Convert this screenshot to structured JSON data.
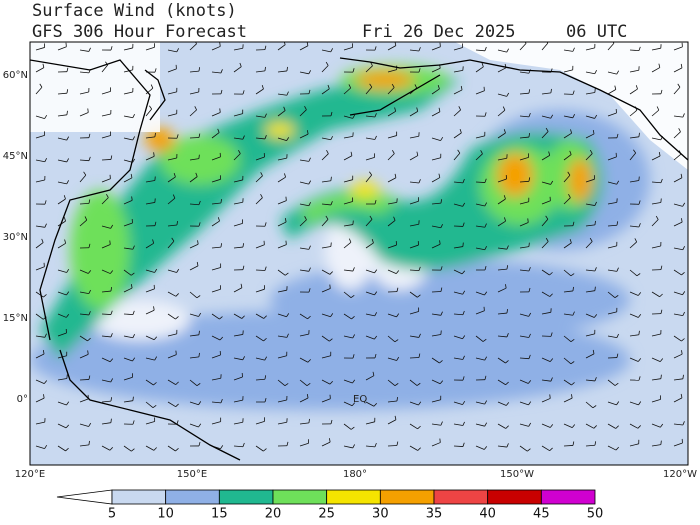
{
  "header": {
    "title": "Surface Wind (knots)",
    "subtitle": "GFS 306 Hour Forecast",
    "date": "Fri 26 Dec 2025",
    "time": "06 UTC"
  },
  "map": {
    "lat_labels": [
      "60°N",
      "45°N",
      "30°N",
      "15°N",
      "0°"
    ],
    "lon_labels": [
      "120°E",
      "150°E",
      "180°",
      "150°W",
      "120°W"
    ],
    "equator_label": "EQ"
  },
  "colorbar": {
    "ticks": [
      5,
      10,
      15,
      20,
      25,
      30,
      35,
      40,
      45,
      50
    ],
    "colors": [
      "#c9d9f0",
      "#8fb0e6",
      "#20b890",
      "#6ee05a",
      "#f5e400",
      "#f5a000",
      "#ee4444",
      "#c80000",
      "#d000d0"
    ],
    "low_color": "#ffffff"
  }
}
